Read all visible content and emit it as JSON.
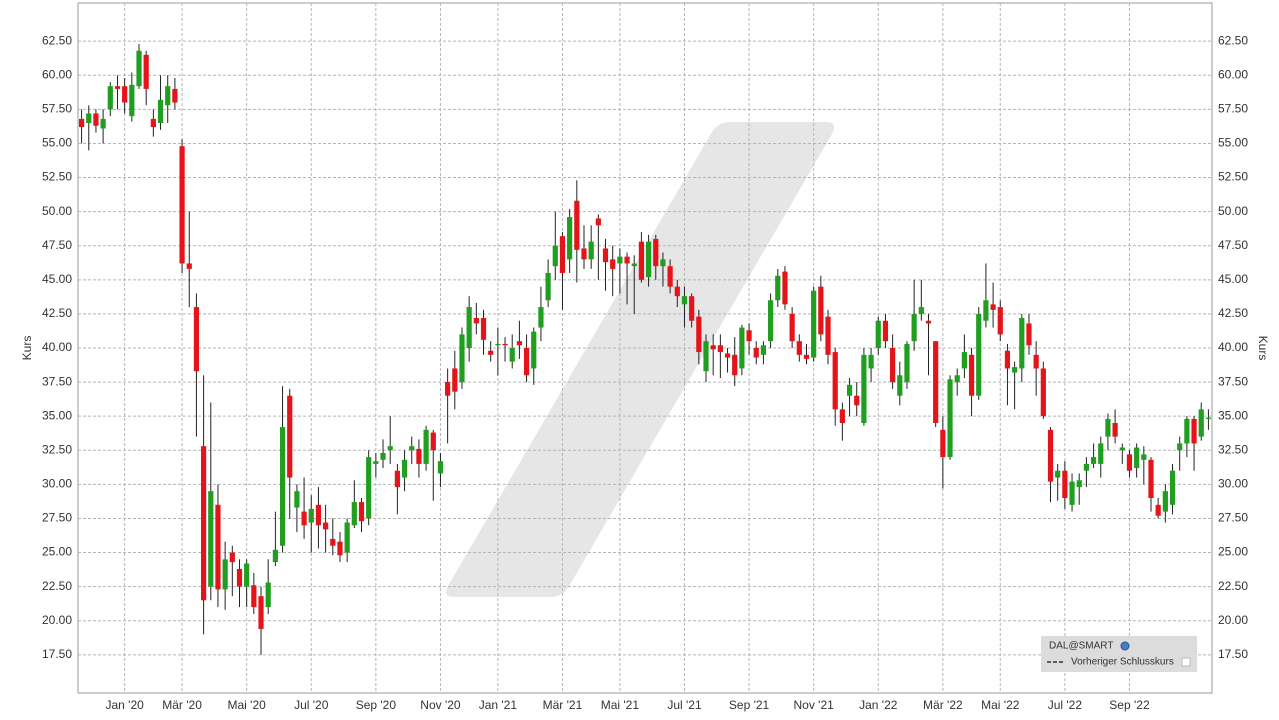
{
  "chart_data": {
    "type": "candlestick",
    "ylabel": "Kurs",
    "ylim": [
      14.7,
      65.3
    ],
    "yticks": [
      {
        "value": 17.5,
        "label": "17.50"
      },
      {
        "value": 20,
        "label": "20.00"
      },
      {
        "value": 22.5,
        "label": "22.50"
      },
      {
        "value": 25,
        "label": "25.00"
      },
      {
        "value": 27.5,
        "label": "27.50"
      },
      {
        "value": 30,
        "label": "30.00"
      },
      {
        "value": 32.5,
        "label": "32.50"
      },
      {
        "value": 35,
        "label": "35.00"
      },
      {
        "value": 37.5,
        "label": "37.50"
      },
      {
        "value": 40,
        "label": "40.00"
      },
      {
        "value": 42.5,
        "label": "42.50"
      },
      {
        "value": 45,
        "label": "45.00"
      },
      {
        "value": 47.5,
        "label": "47.50"
      },
      {
        "value": 50,
        "label": "50.00"
      },
      {
        "value": 52.5,
        "label": "52.50"
      },
      {
        "value": 55,
        "label": "55.00"
      },
      {
        "value": 57.5,
        "label": "57.50"
      },
      {
        "value": 60,
        "label": "60.00"
      },
      {
        "value": 62.5,
        "label": "62.50"
      }
    ],
    "grid": true,
    "legend": "lower right",
    "up_color": "#1f9e1f",
    "down_color": "#e5141b",
    "categories": [
      null,
      null,
      null,
      null,
      null,
      null,
      "Jan '20",
      null,
      null,
      null,
      null,
      null,
      null,
      null,
      "Mär '20",
      null,
      null,
      null,
      null,
      null,
      null,
      null,
      null,
      "Mai '20",
      null,
      null,
      null,
      null,
      null,
      null,
      null,
      null,
      "Jul '20",
      null,
      null,
      null,
      null,
      null,
      null,
      null,
      null,
      "Sep '20",
      null,
      null,
      null,
      null,
      null,
      null,
      null,
      null,
      "Nov '20",
      null,
      null,
      null,
      null,
      null,
      null,
      null,
      "Jan '21",
      null,
      null,
      null,
      null,
      null,
      null,
      null,
      null,
      "Mär '21",
      null,
      null,
      null,
      null,
      null,
      null,
      null,
      "Mai '21",
      null,
      null,
      null,
      null,
      null,
      null,
      null,
      null,
      "Jul '21",
      null,
      null,
      null,
      null,
      null,
      null,
      null,
      null,
      "Sep '21",
      null,
      null,
      null,
      null,
      null,
      null,
      null,
      null,
      "Nov '21",
      null,
      null,
      null,
      null,
      null,
      null,
      null,
      null,
      "Jan '22",
      null,
      null,
      null,
      null,
      null,
      null,
      null,
      null,
      "Mär '22",
      null,
      null,
      null,
      null,
      null,
      null,
      null,
      "Mai '22",
      null,
      null,
      null,
      null,
      null,
      null,
      null,
      null,
      "Jul '22",
      null,
      null,
      null,
      null,
      null,
      null,
      null,
      null,
      "Sep '22",
      null,
      null,
      null,
      null,
      null,
      null,
      null,
      null,
      null,
      null,
      null
    ],
    "series": [
      {
        "name": "DAL@SMART",
        "open": [
          56.8,
          56.5,
          57.2,
          56.1,
          57.5,
          59.2,
          59.2,
          57,
          59.2,
          61.5,
          56.8,
          56.5,
          57.8,
          59,
          54.8,
          46.2,
          43,
          32.8,
          22.5,
          28.5,
          22.3,
          25,
          23.8,
          22.5,
          22.6,
          21.8,
          21,
          24.3,
          25.5,
          36.5,
          28.3,
          28,
          27.2,
          28.5,
          27.2,
          26,
          25.8,
          25,
          27,
          28.7,
          27.5,
          31.5,
          31.8,
          32.5,
          31,
          30.5,
          32.5,
          32.6,
          31.5,
          33.8,
          30.8,
          37.5,
          38.5,
          37.5,
          40,
          42.2,
          42.2,
          39.8,
          40.2,
          40.3,
          39,
          40.5,
          40,
          38.5,
          41.5,
          43.5,
          46,
          48.2,
          46.5,
          50.8,
          47.3,
          46.5,
          49.5,
          47.3,
          46.5,
          46.2,
          46.7,
          46,
          47.8,
          45.2,
          48,
          46,
          46,
          44.5,
          43.2,
          43.8,
          42.3,
          38.3,
          40.2,
          40.2,
          39.6,
          39.5,
          38.5,
          41.3,
          40,
          39.5,
          40.5,
          43.5,
          45.6,
          42.5,
          40.5,
          39.5,
          39.3,
          44.5,
          42.3,
          39.7,
          35.5,
          36.5,
          36.5,
          34.5,
          38.5,
          40,
          42,
          40,
          36.5,
          37.5,
          40.5,
          42.5,
          42,
          40.5,
          34,
          32,
          37.5,
          38.5,
          39.5,
          36.5,
          42,
          43.2,
          43,
          39.8,
          38.2,
          38.5,
          41.8,
          39.5,
          38.5,
          34,
          30.5,
          31,
          28.5,
          29.8,
          31,
          31.5,
          31.5,
          33.5,
          34.5,
          32.5,
          32.2,
          31.2,
          31.8,
          31.8,
          28.5,
          28,
          28.5,
          32.5,
          33,
          34.8,
          33.5,
          34.8
        ],
        "high": [
          57.5,
          57.8,
          57.5,
          57.5,
          59.5,
          60,
          59.8,
          60.2,
          62.3,
          61.8,
          57.5,
          60,
          60,
          59.8,
          55.3,
          50,
          44,
          38,
          36,
          30,
          25.8,
          25.5,
          24.5,
          24.5,
          23.5,
          22.5,
          24.5,
          28,
          37.2,
          37,
          30,
          30.5,
          29.2,
          29.8,
          28.5,
          27.5,
          26.5,
          27.5,
          30.3,
          29,
          32.5,
          32.3,
          33.3,
          35,
          31.5,
          32.5,
          33.5,
          33.3,
          34.3,
          34,
          32.3,
          38.5,
          39.8,
          41.5,
          43.8,
          43.3,
          42.8,
          40.5,
          41.5,
          40.8,
          41,
          42,
          41,
          41.5,
          44.5,
          46.5,
          50,
          48.5,
          50.2,
          52.3,
          49,
          49,
          49.8,
          48,
          47.5,
          47.3,
          47,
          46.8,
          48.5,
          48.3,
          48.3,
          47,
          46.5,
          45,
          44.5,
          44,
          42.8,
          41,
          41,
          41,
          40,
          40.8,
          41.7,
          41.8,
          40.5,
          40.5,
          44,
          45.8,
          46,
          43,
          41,
          40.3,
          44.5,
          45.3,
          42.8,
          40,
          36,
          37.8,
          37.5,
          40,
          40,
          42.3,
          42.5,
          41,
          39,
          40.5,
          45,
          45,
          42.5,
          40.5,
          35,
          38,
          38.5,
          41,
          40,
          43,
          46.2,
          44.8,
          43.5,
          40.3,
          39,
          42.5,
          42.5,
          40.5,
          39,
          34.2,
          31.5,
          31.7,
          30.8,
          30.8,
          32,
          33,
          33.5,
          35.2,
          35.5,
          33,
          32.5,
          33,
          32.8,
          32,
          29,
          30,
          31.5,
          33.5,
          35,
          35,
          36,
          35.5
        ],
        "low": [
          55,
          54.5,
          55.8,
          55,
          57,
          57.5,
          57.2,
          56.6,
          59,
          57.8,
          55.5,
          56,
          56.5,
          57.5,
          45.5,
          43,
          33.5,
          19,
          21.5,
          21,
          20.8,
          21.8,
          21,
          21,
          20.5,
          17.5,
          20.5,
          24,
          25,
          27.5,
          26.5,
          26,
          25,
          25.3,
          25,
          24.8,
          24.3,
          24.3,
          26.8,
          26.5,
          27,
          30.5,
          31.2,
          31.5,
          27.8,
          29.5,
          31.5,
          30.5,
          31,
          28.8,
          29.8,
          33,
          35.5,
          37,
          39,
          41,
          39.5,
          39,
          38,
          39,
          38.5,
          39.2,
          37.5,
          37.3,
          40.5,
          43,
          45,
          42.8,
          45.5,
          44.8,
          45.8,
          45.8,
          45,
          44.2,
          43.8,
          44,
          43.2,
          42.5,
          44.8,
          44.5,
          45,
          44.5,
          44,
          43,
          41.5,
          41.5,
          38.8,
          37.5,
          38,
          37.8,
          38.2,
          37.2,
          38,
          39.5,
          38.8,
          38.8,
          40,
          43,
          42.8,
          40,
          39,
          38.8,
          39,
          40.5,
          38.8,
          34.3,
          33.2,
          35,
          35,
          34.3,
          37.5,
          39.5,
          40,
          37,
          35.8,
          37,
          39.8,
          42,
          38,
          34.2,
          29.7,
          31.8,
          36.5,
          37.8,
          35,
          36.2,
          41.5,
          41.5,
          40.5,
          35.8,
          35.5,
          37.5,
          39.5,
          36.5,
          34.8,
          28.7,
          28.8,
          28.2,
          28,
          28.5,
          29.8,
          31.2,
          30.5,
          32.5,
          33,
          31.5,
          30.5,
          30.5,
          30,
          28,
          27.5,
          27.2,
          27.8,
          31,
          32,
          31,
          33.2,
          34
        ],
        "close": [
          56.2,
          57.2,
          56.3,
          56.8,
          59.2,
          59,
          58,
          59.3,
          61.8,
          59,
          56.2,
          58.2,
          59.2,
          58,
          46.2,
          45.8,
          38.3,
          21.5,
          29.5,
          22.3,
          24.5,
          24.3,
          22.5,
          24.2,
          21,
          19.4,
          22.8,
          25.2,
          34.2,
          30.5,
          29.5,
          27,
          28.2,
          27,
          26.7,
          25.5,
          24.8,
          27.2,
          28.7,
          27.3,
          32,
          31.7,
          32.3,
          32.8,
          29.8,
          31.8,
          32.8,
          31.5,
          34,
          32.5,
          31.7,
          36.5,
          36.8,
          41,
          43,
          41.8,
          40.6,
          39.5,
          40.3,
          40.2,
          40,
          40.2,
          38,
          41.2,
          43,
          45.5,
          47.5,
          45.5,
          49.6,
          47.2,
          46.5,
          47.8,
          49,
          46.3,
          45.8,
          46.7,
          46.2,
          46.2,
          45,
          47.8,
          46,
          46.5,
          44.5,
          43.8,
          43.8,
          42,
          39.7,
          40.5,
          39.9,
          39.7,
          39.3,
          38,
          41.5,
          40.5,
          39.3,
          40.2,
          43.5,
          45.3,
          43.2,
          40.5,
          39.5,
          39.2,
          44.2,
          41,
          39.5,
          35.5,
          34.5,
          37.3,
          35.8,
          39.5,
          39.5,
          42,
          40.5,
          37.5,
          38,
          40.3,
          42.5,
          43,
          41.8,
          34.5,
          32,
          37.7,
          38,
          39.7,
          36.5,
          42.5,
          43.5,
          42.8,
          41,
          38.5,
          38.6,
          42.2,
          40.2,
          38.5,
          35,
          30.2,
          31,
          29,
          30.2,
          30.3,
          31.5,
          32,
          33,
          34.8,
          33.5,
          32.7,
          31,
          32.7,
          32.2,
          29,
          27.7,
          29.5,
          31,
          33,
          34.8,
          33,
          35.5,
          34.9
        ]
      },
      {
        "name": "Vorheriger Schlusskurs",
        "color": "#333333"
      }
    ]
  }
}
